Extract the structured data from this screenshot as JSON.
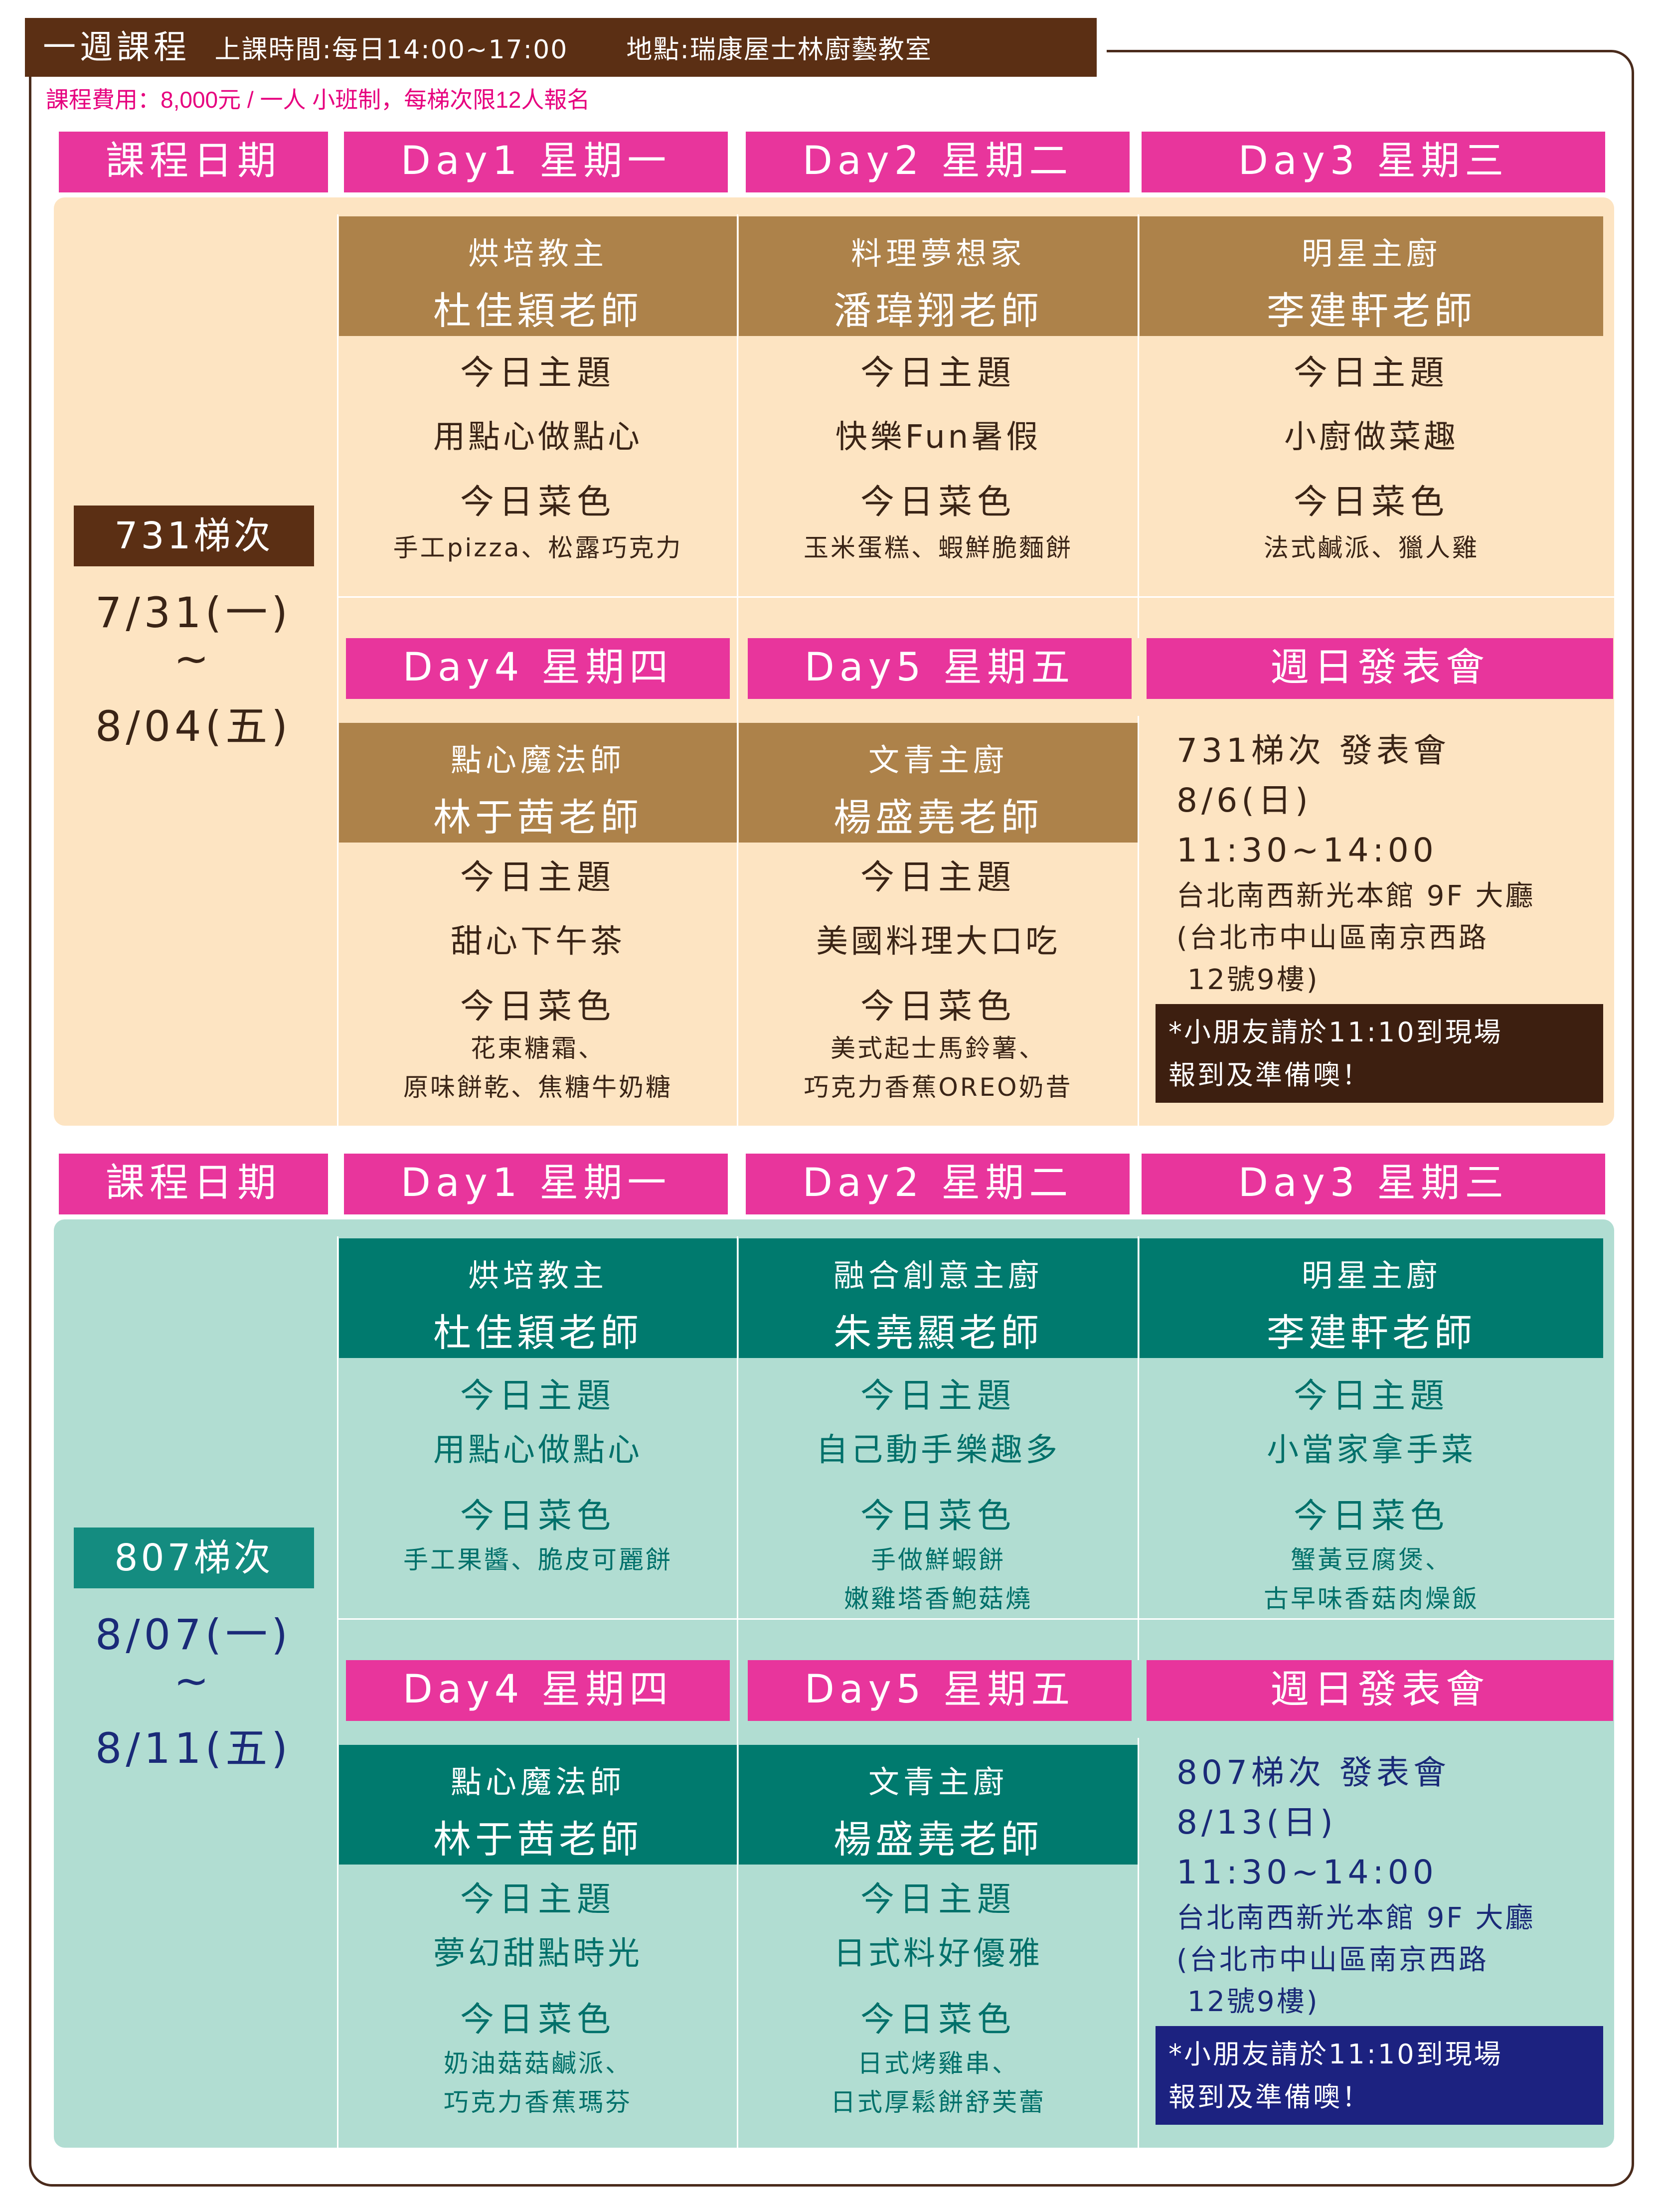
{
  "header": {
    "title": "一週課程",
    "time": "上課時間:每日14:00~17:00",
    "place": "地點:瑞康屋士林廚藝教室",
    "fee": "課程費用：8,000元 / 一人  小班制，每梯次限12人報名"
  },
  "labels": {
    "date_col": "課程日期",
    "topic": "今日主題",
    "dishes": "今日菜色",
    "day1": "Day1  星期一",
    "day2": "Day2  星期二",
    "day3": "Day3  星期三",
    "day4": "Day4  星期四",
    "day5": "Day5  星期五",
    "sunday": "週日發表會",
    "tilde": "~"
  },
  "batches": [
    {
      "name": "731梯次",
      "start": "7/31(一)",
      "end": "8/04(五)",
      "days": [
        {
          "role": "烘培教主",
          "teacher": "杜佳穎老師",
          "topic": "用點心做點心",
          "dish1": "手工pizza、松露巧克力",
          "dish2": ""
        },
        {
          "role": "料理夢想家",
          "teacher": "潘瑋翔老師",
          "topic": "快樂Fun暑假",
          "dish1": "玉米蛋糕、蝦鮮脆麵餅",
          "dish2": ""
        },
        {
          "role": "明星主廚",
          "teacher": "李建軒老師",
          "topic": "小廚做菜趣",
          "dish1": "法式鹹派、獵人雞",
          "dish2": ""
        },
        {
          "role": "點心魔法師",
          "teacher": "林于茜老師",
          "topic": "甜心下午茶",
          "dish1": "花束糖霜、",
          "dish2": "原味餅乾、焦糖牛奶糖"
        },
        {
          "role": "文青主廚",
          "teacher": "楊盛堯老師",
          "topic": "美國料理大口吃",
          "dish1": "美式起士馬鈴薯、",
          "dish2": "巧克力香蕉OREO奶昔"
        }
      ],
      "event": {
        "title": "731梯次 發表會",
        "date": "8/6(日)",
        "time": "11:30~14:00",
        "venue": "台北南西新光本館 9F 大廳",
        "addr1": "(台北市中山區南京西路",
        "addr2": " 12號9樓)",
        "note1": "*小朋友請於11:10到現場",
        "note2": "報到及準備噢！"
      }
    },
    {
      "name": "807梯次",
      "start": "8/07(一)",
      "end": "8/11(五)",
      "days": [
        {
          "role": "烘培教主",
          "teacher": "杜佳穎老師",
          "topic": "用點心做點心",
          "dish1": "手工果醬、脆皮可麗餅",
          "dish2": ""
        },
        {
          "role": "融合創意主廚",
          "teacher": "朱堯顯老師",
          "topic": "自己動手樂趣多",
          "dish1": "手做鮮蝦餅",
          "dish2": "嫩雞塔香鮑菇燒"
        },
        {
          "role": "明星主廚",
          "teacher": "李建軒老師",
          "topic": "小當家拿手菜",
          "dish1": "蟹黃豆腐煲、",
          "dish2": "古早味香菇肉燥飯"
        },
        {
          "role": "點心魔法師",
          "teacher": "林于茜老師",
          "topic": "夢幻甜點時光",
          "dish1": "奶油菇菇鹹派、",
          "dish2": "巧克力香蕉瑪芬"
        },
        {
          "role": "文青主廚",
          "teacher": "楊盛堯老師",
          "topic": "日式料好優雅",
          "dish1": "日式烤雞串、",
          "dish2": "日式厚鬆餅舒芙蕾"
        }
      ],
      "event": {
        "title": "807梯次 發表會",
        "date": "8/13(日)",
        "time": "11:30~14:00",
        "venue": "台北南西新光本館 9F 大廳",
        "addr1": "(台北市中山區南京西路",
        "addr2": " 12號9樓)",
        "note1": "*小朋友請於11:10到現場",
        "note2": "報到及準備噢！"
      }
    }
  ]
}
